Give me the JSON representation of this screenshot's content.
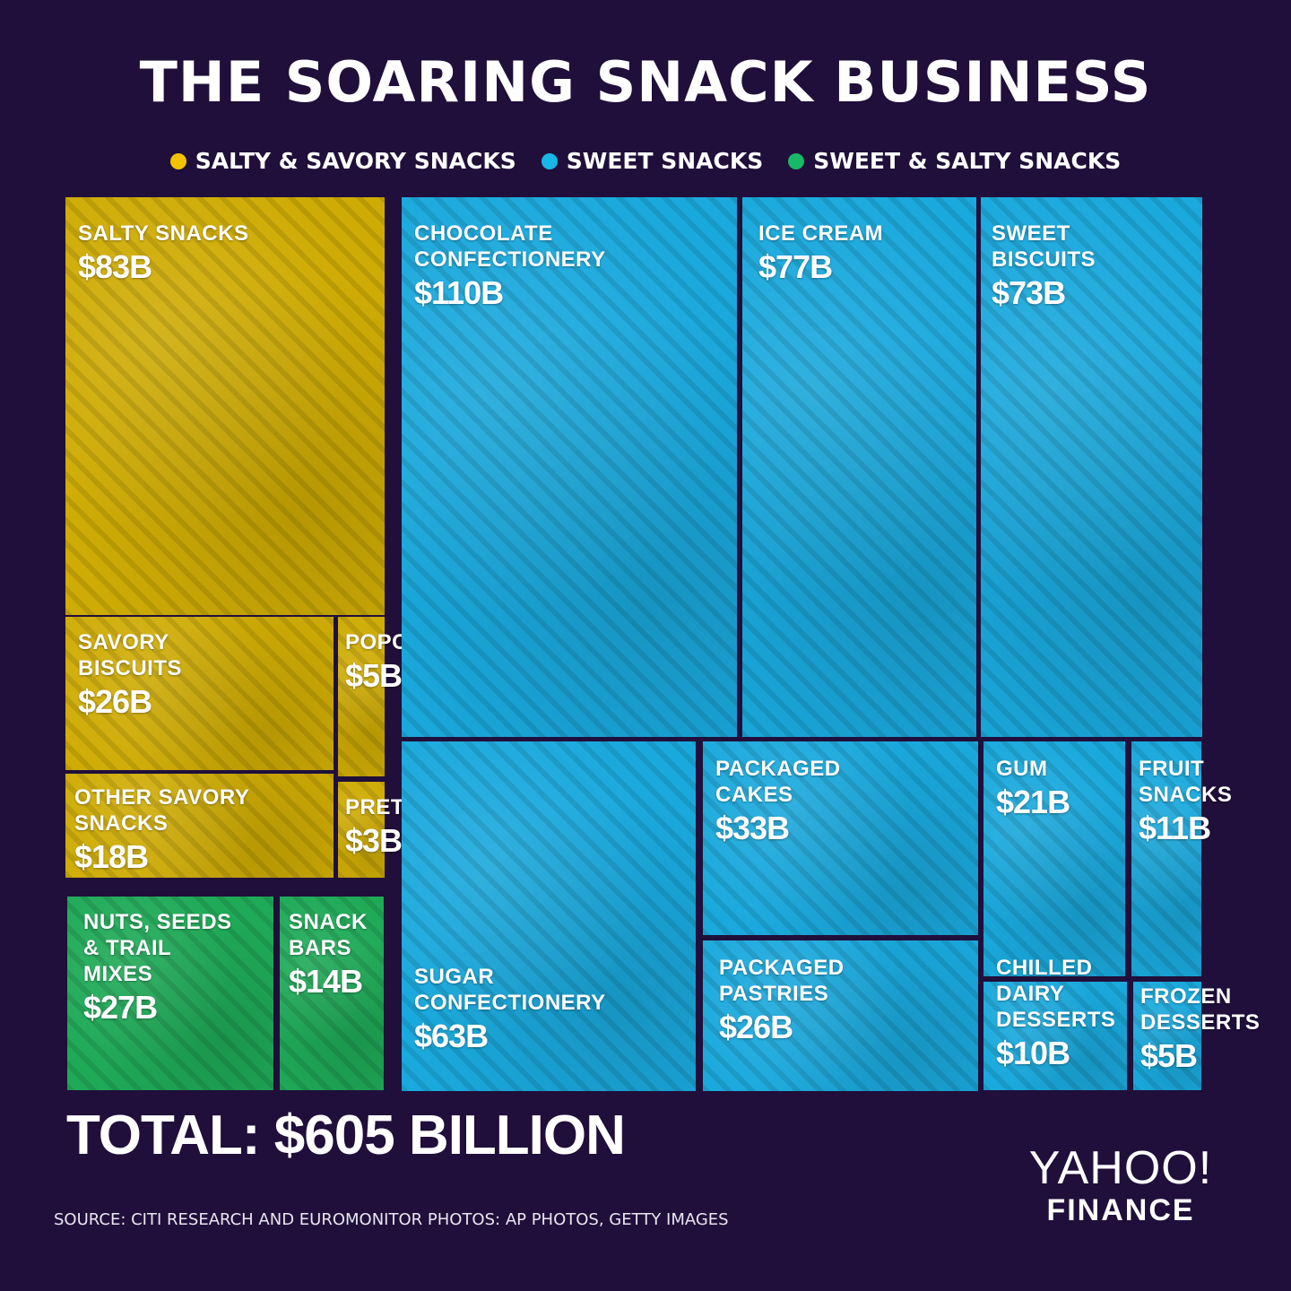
{
  "title": "THE SOARING SNACK BUSINESS",
  "legend": [
    {
      "name": "SALTY & SAVORY SNACKS",
      "color": "#f2c300"
    },
    {
      "name": "SWEET SNACKS",
      "color": "#19b6e8"
    },
    {
      "name": "SWEET & SALTY SNACKS",
      "color": "#17b866"
    }
  ],
  "chart_data": {
    "type": "treemap",
    "title": "THE SOARING SNACK BUSINESS",
    "unit": "billion USD",
    "categories": [
      {
        "name": "SALTY & SAVORY SNACKS",
        "color": "#cfac05"
      },
      {
        "name": "SWEET SNACKS",
        "color": "#1aa9dc"
      },
      {
        "name": "SWEET & SALTY SNACKS",
        "color": "#1faa58"
      }
    ],
    "items": [
      {
        "label": "SALTY SNACKS",
        "value": 83,
        "value_label": "$83B",
        "category": "SALTY & SAVORY SNACKS"
      },
      {
        "label": "SAVORY BISCUITS",
        "value": 26,
        "value_label": "$26B",
        "category": "SALTY & SAVORY SNACKS"
      },
      {
        "label": "POPCORN",
        "value": 5,
        "value_label": "$5B",
        "category": "SALTY & SAVORY SNACKS"
      },
      {
        "label": "OTHER SAVORY SNACKS",
        "value": 18,
        "value_label": "$18B",
        "category": "SALTY & SAVORY SNACKS"
      },
      {
        "label": "PRETZELS",
        "value": 3,
        "value_label": "$3B",
        "category": "SALTY & SAVORY SNACKS"
      },
      {
        "label": "NUTS, SEEDS & TRAIL MIXES",
        "value": 27,
        "value_label": "$27B",
        "category": "SWEET & SALTY SNACKS"
      },
      {
        "label": "SNACK BARS",
        "value": 14,
        "value_label": "$14B",
        "category": "SWEET & SALTY SNACKS"
      },
      {
        "label": "CHOCOLATE CONFECTIONERY",
        "value": 110,
        "value_label": "$110B",
        "category": "SWEET SNACKS"
      },
      {
        "label": "ICE CREAM",
        "value": 77,
        "value_label": "$77B",
        "category": "SWEET SNACKS"
      },
      {
        "label": "SWEET BISCUITS",
        "value": 73,
        "value_label": "$73B",
        "category": "SWEET SNACKS"
      },
      {
        "label": "SUGAR CONFECTIONERY",
        "value": 63,
        "value_label": "$63B",
        "category": "SWEET SNACKS"
      },
      {
        "label": "PACKAGED CAKES",
        "value": 33,
        "value_label": "$33B",
        "category": "SWEET SNACKS"
      },
      {
        "label": "PACKAGED PASTRIES",
        "value": 26,
        "value_label": "$26B",
        "category": "SWEET SNACKS"
      },
      {
        "label": "GUM",
        "value": 21,
        "value_label": "$21B",
        "category": "SWEET SNACKS"
      },
      {
        "label": "FRUIT SNACKS",
        "value": 11,
        "value_label": "$11B",
        "category": "SWEET SNACKS"
      },
      {
        "label": "CHILLED DAIRY DESSERTS",
        "value": 10,
        "value_label": "$10B",
        "category": "SWEET SNACKS"
      },
      {
        "label": "FROZEN DESSERTS",
        "value": 5,
        "value_label": "$5B",
        "category": "SWEET SNACKS"
      }
    ],
    "total_label": "TOTAL: $605 BILLION"
  },
  "tiles": [
    {
      "lines": "SALTY SNACKS",
      "value": "$83B"
    },
    {
      "lines": "SAVORY\nBISCUITS",
      "value": "$26B"
    },
    {
      "lines": "POPCORN",
      "value": "$5B"
    },
    {
      "lines": "OTHER SAVORY\nSNACKS",
      "value": "$18B"
    },
    {
      "lines": "PRETZELS",
      "value": "$3B"
    },
    {
      "lines": "NUTS, SEEDS\n& TRAIL\nMIXES",
      "value": "$27B"
    },
    {
      "lines": "SNACK\nBARS",
      "value": "$14B"
    },
    {
      "lines": "CHOCOLATE\nCONFECTIONERY",
      "value": "$110B"
    },
    {
      "lines": "ICE CREAM",
      "value": "$77B"
    },
    {
      "lines": "SWEET\nBISCUITS",
      "value": "$73B"
    },
    {
      "lines": "SUGAR\nCONFECTIONERY",
      "value": "$63B"
    },
    {
      "lines": "PACKAGED\nCAKES",
      "value": "$33B"
    },
    {
      "lines": "PACKAGED\nPASTRIES",
      "value": "$26B"
    },
    {
      "lines": "GUM",
      "value": "$21B"
    },
    {
      "lines": "FRUIT\nSNACKS",
      "value": "$11B"
    },
    {
      "lines": "CHILLED\nDAIRY\nDESSERTS",
      "value": "$10B"
    },
    {
      "lines": "FROZEN\nDESSERTS",
      "value": "$5B"
    }
  ],
  "total": "TOTAL: $605 BILLION",
  "source": "SOURCE:  CITI RESEARCH AND EUROMONITOR   PHOTOS: AP PHOTOS, GETTY IMAGES",
  "logo": {
    "main": "YAHOO!",
    "sub": "FINANCE"
  }
}
